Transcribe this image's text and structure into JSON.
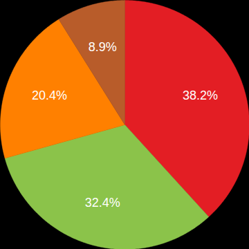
{
  "chart_data": {
    "type": "pie",
    "values": [
      38.2,
      32.4,
      20.4,
      8.9
    ],
    "value_labels": [
      "38.2%",
      "32.4%",
      "20.4%",
      "8.9%"
    ],
    "colors": [
      "#e31e24",
      "#8bc34a",
      "#ff8000",
      "#b85c2a"
    ],
    "data_labels": true
  }
}
